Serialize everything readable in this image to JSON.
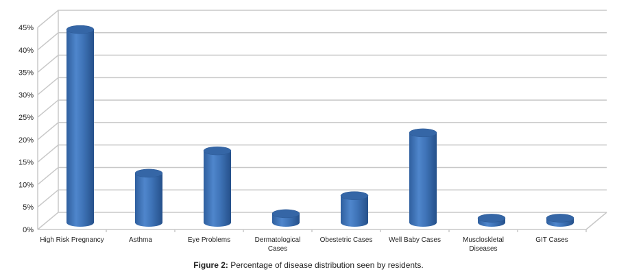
{
  "chart_data": {
    "type": "bar",
    "style": "3d-cylinder",
    "categories": [
      [
        "High Risk Pregnancy"
      ],
      [
        "Asthma"
      ],
      [
        "Eye Problems"
      ],
      [
        "Dermatological",
        "Cases"
      ],
      [
        "Obestetric Cases"
      ],
      [
        "Well Baby Cases"
      ],
      [
        "Muscloskletal",
        "Diseases"
      ],
      [
        "GIT Cases"
      ]
    ],
    "values": [
      43,
      11,
      16,
      2,
      6,
      20,
      1,
      1
    ],
    "ylim": [
      0,
      45
    ],
    "yticks": [
      "0%",
      "5%",
      "10%",
      "15%",
      "20%",
      "25%",
      "30%",
      "35%",
      "40%",
      "45%"
    ],
    "ylabel": "",
    "xlabel": "",
    "grid": true,
    "bar_color": "#3f74b8"
  },
  "caption": {
    "label": "Figure 2:",
    "text": " Percentage of disease distribution seen by residents."
  }
}
